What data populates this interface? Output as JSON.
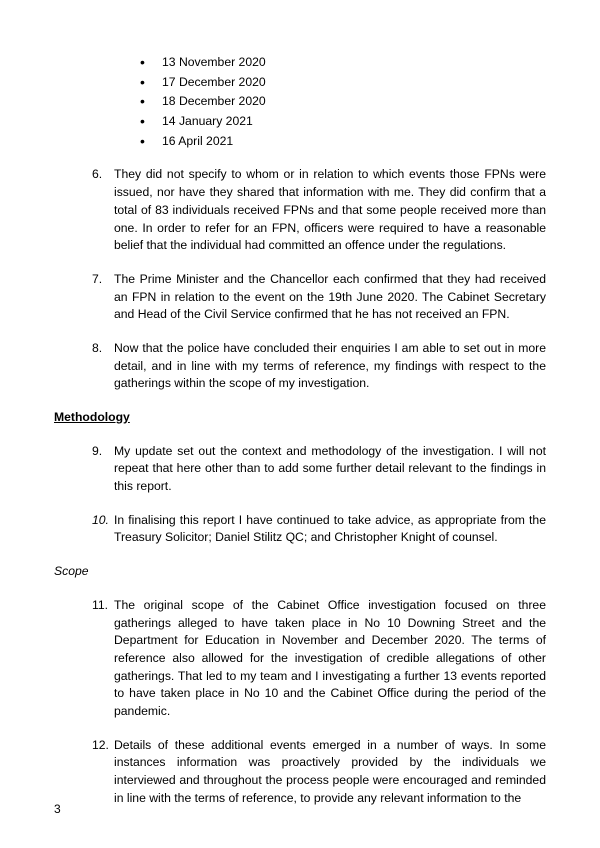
{
  "colors": {
    "text": "#000000",
    "background": "#ffffff"
  },
  "typography": {
    "font_family": "Arial",
    "body_fontsize_pt": 9,
    "line_height": 1.45
  },
  "dates": [
    "13 November 2020",
    "17 December 2020",
    "18 December 2020",
    "14 January 2021",
    "16 April 2021"
  ],
  "paras": {
    "p6": {
      "num": "6.",
      "text": "They did not specify to whom or in relation to which events those FPNs were issued, nor have they shared that information with me. They did confirm that a total of 83 individuals received FPNs and that some people received more than one. In order to refer for an FPN, officers were required to have a reasonable belief that the individual had committed an offence under the regulations."
    },
    "p7": {
      "num": "7.",
      "text": "The Prime Minister and the Chancellor each confirmed that they had received an FPN in relation to the event on the 19th June 2020. The Cabinet Secretary and Head of the Civil Service confirmed that he has not received an FPN."
    },
    "p8": {
      "num": "8.",
      "text": "Now that the police have concluded their enquiries I am able to set out in more detail, and in line with my terms of reference, my findings with respect to the gatherings within the scope of my investigation."
    },
    "p9": {
      "num": "9.",
      "text": "My update set out the context and methodology of the investigation. I will not repeat that here other than to add some further detail relevant to the findings in this report."
    },
    "p10": {
      "num": "10.",
      "text": "In finalising this report I have continued to take advice, as appropriate from the Treasury Solicitor; Daniel Stilitz QC; and Christopher Knight of counsel."
    },
    "p11": {
      "num": "11.",
      "text": "The original scope of the Cabinet Office investigation focused on three gatherings alleged to have taken place in No 10 Downing Street and the Department for Education in November and December 2020. The terms of reference also allowed for the investigation of credible allegations of other gatherings. That led to my team and I investigating a further 13 events reported to have taken place in No 10 and the Cabinet Office during the period of the pandemic."
    },
    "p12": {
      "num": "12.",
      "text": "Details of these additional events emerged in a number of ways. In some instances information was proactively provided by the individuals we interviewed and throughout the process people were encouraged and reminded in line with the terms of reference, to provide any relevant information to the"
    }
  },
  "headings": {
    "methodology": "Methodology",
    "scope": "Scope"
  },
  "page_number": "3"
}
